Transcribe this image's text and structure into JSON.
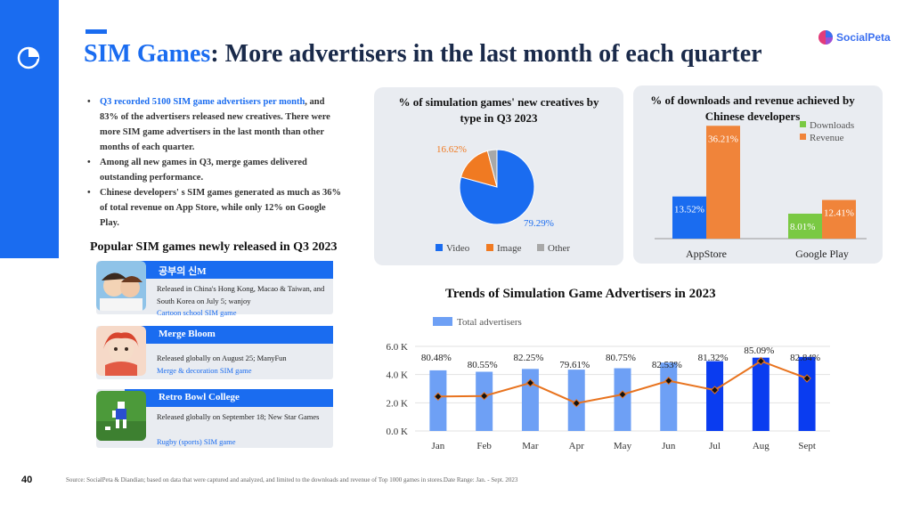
{
  "header": {
    "title_highlight": "SIM Games",
    "title_rest": ": More advertisers in the last month of each quarter",
    "brand": "SocialPeta"
  },
  "bullets": [
    {
      "highlight": "Q3 recorded 5100 SIM game advertisers per month",
      "text": ", and 83% of the advertisers released new creatives. There were more SIM game advertisers in the last month than other months of each quarter."
    },
    {
      "highlight": "",
      "text": "Among all new games in Q3, merge games delivered outstanding performance."
    },
    {
      "highlight": "",
      "text": "Chinese developers' s SIM games generated as much as 36% of total revenue on App Store, while only 12% on Google Play."
    }
  ],
  "popular": {
    "title": "Popular SIM games newly released in Q3 2023",
    "games": [
      {
        "name": "공부의 신M",
        "desc": "Released in China's Hong Kong, Macao & Taiwan, and South Korea on July 5; wanjoy",
        "genre": "Cartoon school SIM game"
      },
      {
        "name": "Merge Bloom",
        "desc": "Released globally on August 25; ManyFun",
        "genre": "Merge & decoration SIM game"
      },
      {
        "name": "Retro Bowl College",
        "desc": "Released globally on September 18; New Star Games",
        "genre": "Rugby (sports) SIM game"
      }
    ]
  },
  "footer": {
    "page": "40",
    "source": "Source: SocialPeta & Diandian; based on data that were captured and analyzed, and limited to the downloads and revenue of Top 1000 games in stores.Date Range: Jan. - Sept. 2023"
  },
  "chart_data": [
    {
      "type": "pie",
      "title": "% of simulation games' new creatives by type in Q3 2023",
      "slices": [
        {
          "label": "Video",
          "value": 79.29,
          "label_text": "79.29%",
          "color": "#1a6cf0"
        },
        {
          "label": "Image",
          "value": 16.62,
          "label_text": "16.62%",
          "color": "#f07a22"
        },
        {
          "label": "Other",
          "value": 4.09,
          "label_text": "",
          "color": "#a8a8a8"
        }
      ],
      "legend": "bottom"
    },
    {
      "type": "bar",
      "title": "% of downloads and revenue achieved by Chinese developers",
      "categories": [
        "AppStore",
        "Google Play"
      ],
      "series": [
        {
          "name": "Downloads",
          "values": [
            13.52,
            8.01
          ],
          "labels": [
            "13.52%",
            "8.01%"
          ],
          "colors": [
            "#1a6cf0",
            "#7ac943"
          ]
        },
        {
          "name": "Revenue",
          "values": [
            36.21,
            12.41
          ],
          "labels": [
            "36.21%",
            "12.41%"
          ],
          "colors": [
            "#f0843a",
            "#f0843a"
          ]
        }
      ],
      "legend_colors": [
        "#7ac943",
        "#f0843a"
      ],
      "ylim": [
        0,
        40
      ],
      "legend": "top-right"
    },
    {
      "type": "bar",
      "title": "Trends of Simulation Game Advertisers in 2023",
      "categories": [
        "Jan",
        "Feb",
        "Mar",
        "Apr",
        "May",
        "Jun",
        "Jul",
        "Aug",
        "Sept"
      ],
      "series": [
        {
          "name": "Total advertisers",
          "values": [
            4300,
            4200,
            4400,
            4350,
            4450,
            4850,
            4950,
            5200,
            5250
          ],
          "colors": [
            "#6ea0f5",
            "#6ea0f5",
            "#6ea0f5",
            "#6ea0f5",
            "#6ea0f5",
            "#6ea0f5",
            "#0a3cf0",
            "#0a3cf0",
            "#0a3cf0"
          ]
        },
        {
          "name": "",
          "type": "line",
          "values": [
            80.48,
            80.55,
            82.25,
            79.61,
            80.75,
            82.53,
            81.32,
            85.09,
            82.84
          ],
          "labels": [
            "80.48%",
            "80.55%",
            "82.25%",
            "79.61%",
            "80.75%",
            "82.53%",
            "81.32%",
            "85.09%",
            "82.84%"
          ],
          "color": "#e8731e"
        }
      ],
      "y_ticks": [
        "0.0 K",
        "2.0 K",
        "4.0 K",
        "6.0 K"
      ],
      "ylim": [
        0,
        6000
      ],
      "line_ylim": [
        76,
        87
      ],
      "legend": "top-left"
    }
  ]
}
